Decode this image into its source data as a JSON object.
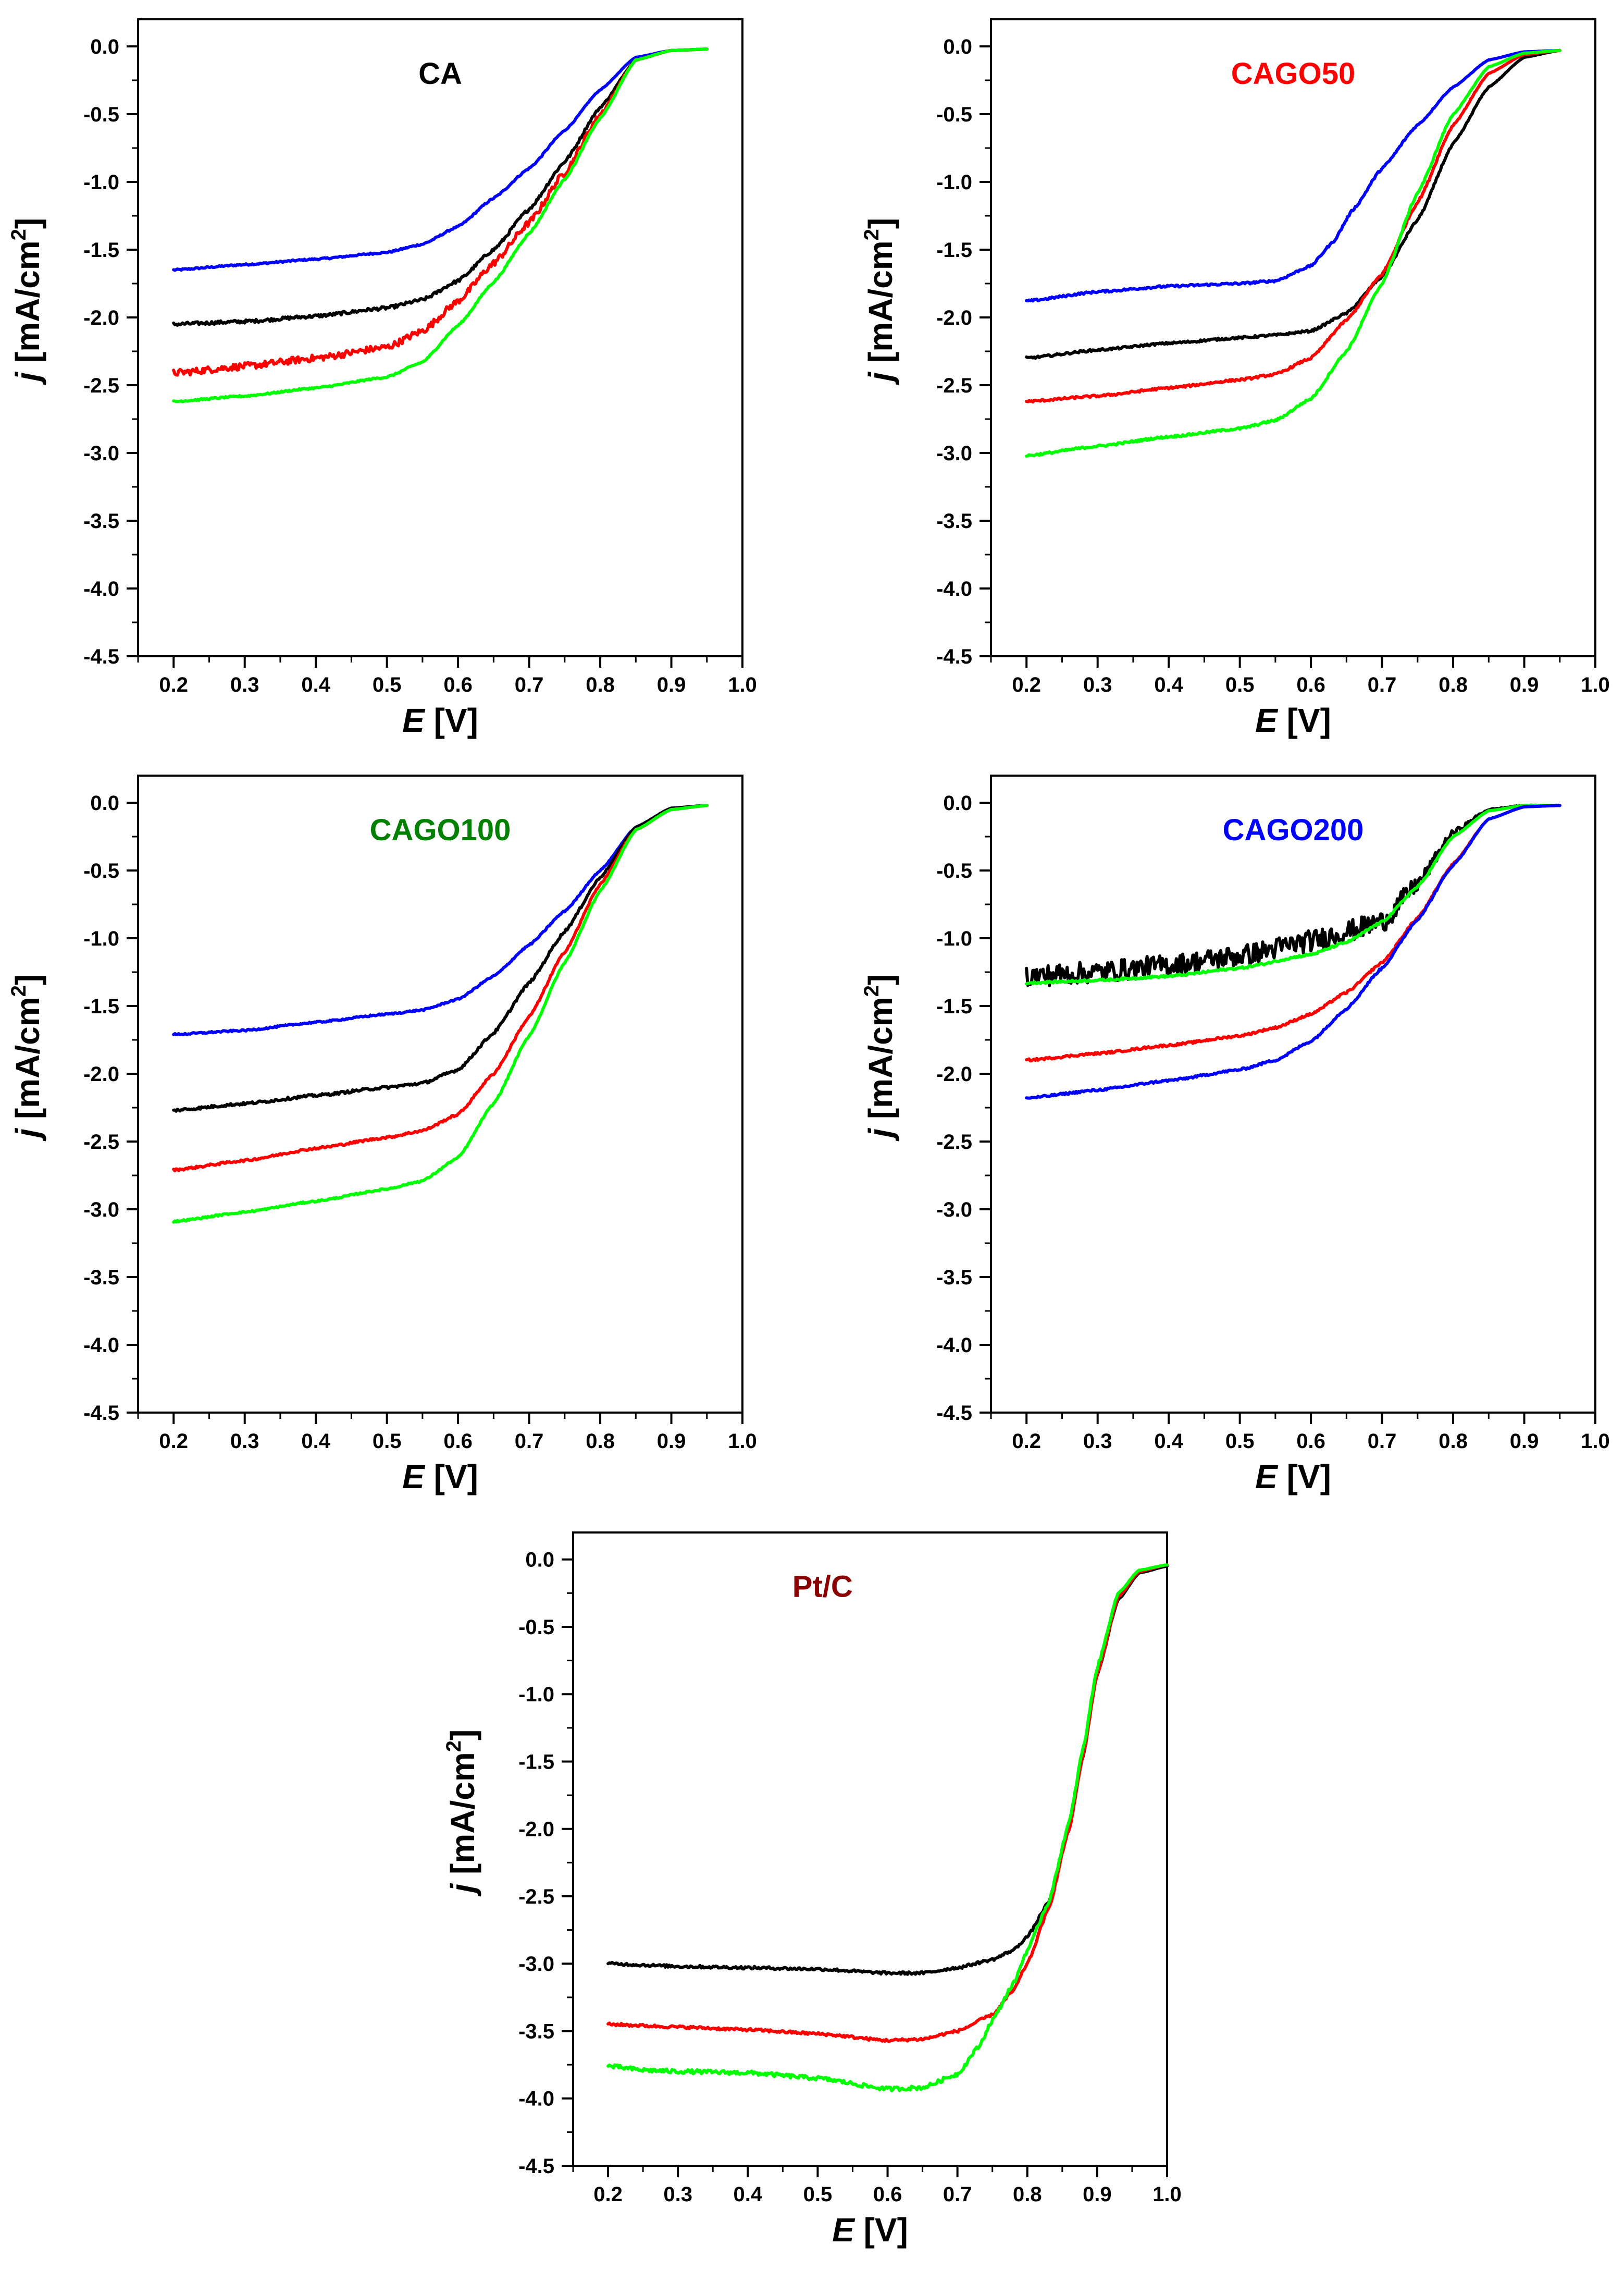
{
  "figure": {
    "series_colors": {
      "black": "#000000",
      "red": "#ff0000",
      "green": "#00ff00",
      "blue": "#0000ff"
    }
  },
  "chart_data": [
    {
      "type": "line",
      "title": "CA",
      "title_color": "#000000",
      "xlabel_var": "E",
      "xlabel_unit": " [V]",
      "ylabel_var": "j",
      "ylabel_unit": " [mA/cm",
      "ylabel_sup": "2",
      "ylabel_close": "]",
      "xlim": [
        0.15,
        1.0
      ],
      "ylim": [
        -4.5,
        0.2
      ],
      "xticks": [
        "0.2",
        "0.3",
        "0.4",
        "0.5",
        "0.6",
        "0.7",
        "0.8",
        "0.9",
        "1.0"
      ],
      "yticks": [
        "0.0",
        "-0.5",
        "-1.0",
        "-1.5",
        "-2.0",
        "-2.5",
        "-3.0",
        "-3.5",
        "-4.0",
        "-4.5"
      ],
      "series": [
        {
          "color": "blue",
          "x": [
            0.2,
            0.3,
            0.4,
            0.5,
            0.55,
            0.6,
            0.65,
            0.7,
            0.75,
            0.8,
            0.85,
            0.9,
            0.95
          ],
          "y": [
            -1.65,
            -1.61,
            -1.57,
            -1.52,
            -1.46,
            -1.33,
            -1.12,
            -0.9,
            -0.62,
            -0.32,
            -0.08,
            -0.03,
            -0.02
          ],
          "noise": 0.006
        },
        {
          "color": "black",
          "x": [
            0.2,
            0.3,
            0.4,
            0.5,
            0.55,
            0.6,
            0.65,
            0.7,
            0.75,
            0.8,
            0.85,
            0.9,
            0.95
          ],
          "y": [
            -2.05,
            -2.03,
            -1.99,
            -1.93,
            -1.87,
            -1.73,
            -1.5,
            -1.2,
            -0.85,
            -0.45,
            -0.1,
            -0.03,
            -0.02
          ],
          "noise": 0.012
        },
        {
          "color": "red",
          "x": [
            0.2,
            0.3,
            0.4,
            0.5,
            0.55,
            0.6,
            0.65,
            0.7,
            0.75,
            0.8,
            0.85,
            0.9,
            0.95
          ],
          "y": [
            -2.41,
            -2.36,
            -2.3,
            -2.22,
            -2.1,
            -1.88,
            -1.6,
            -1.3,
            -0.93,
            -0.5,
            -0.1,
            -0.03,
            -0.02
          ],
          "noise": 0.025
        },
        {
          "color": "green",
          "x": [
            0.2,
            0.3,
            0.4,
            0.5,
            0.55,
            0.6,
            0.65,
            0.7,
            0.75,
            0.8,
            0.85,
            0.9,
            0.95
          ],
          "y": [
            -2.62,
            -2.58,
            -2.52,
            -2.44,
            -2.33,
            -2.06,
            -1.74,
            -1.38,
            -0.98,
            -0.53,
            -0.1,
            -0.03,
            -0.02
          ],
          "noise": 0.006
        }
      ]
    },
    {
      "type": "line",
      "title": "CAGO50",
      "title_color": "#ff0000",
      "xlabel_var": "E",
      "xlabel_unit": " [V]",
      "ylabel_var": "j",
      "ylabel_unit": " [mA/cm",
      "ylabel_sup": "2",
      "ylabel_close": "]",
      "xlim": [
        0.15,
        1.0
      ],
      "ylim": [
        -4.5,
        0.2
      ],
      "xticks": [
        "0.2",
        "0.3",
        "0.4",
        "0.5",
        "0.6",
        "0.7",
        "0.8",
        "0.9",
        "1.0"
      ],
      "yticks": [
        "0.0",
        "-0.5",
        "-1.0",
        "-1.5",
        "-2.0",
        "-2.5",
        "-3.0",
        "-3.5",
        "-4.0",
        "-4.5"
      ],
      "series": [
        {
          "color": "blue",
          "x": [
            0.2,
            0.3,
            0.4,
            0.5,
            0.55,
            0.6,
            0.63,
            0.66,
            0.7,
            0.75,
            0.8,
            0.85,
            0.9,
            0.95
          ],
          "y": [
            -1.88,
            -1.81,
            -1.77,
            -1.75,
            -1.73,
            -1.62,
            -1.45,
            -1.2,
            -0.9,
            -0.58,
            -0.3,
            -0.1,
            -0.04,
            -0.03
          ],
          "noise": 0.008
        },
        {
          "color": "black",
          "x": [
            0.2,
            0.3,
            0.4,
            0.5,
            0.55,
            0.6,
            0.65,
            0.7,
            0.75,
            0.8,
            0.85,
            0.9,
            0.95
          ],
          "y": [
            -2.3,
            -2.24,
            -2.19,
            -2.15,
            -2.13,
            -2.1,
            -1.97,
            -1.7,
            -1.28,
            -0.72,
            -0.3,
            -0.08,
            -0.03
          ],
          "noise": 0.008
        },
        {
          "color": "red",
          "x": [
            0.2,
            0.3,
            0.4,
            0.5,
            0.55,
            0.6,
            0.65,
            0.7,
            0.75,
            0.8,
            0.85,
            0.9,
            0.95
          ],
          "y": [
            -2.62,
            -2.58,
            -2.52,
            -2.46,
            -2.42,
            -2.3,
            -2.02,
            -1.68,
            -1.15,
            -0.58,
            -0.2,
            -0.06,
            -0.03
          ],
          "noise": 0.008
        },
        {
          "color": "green",
          "x": [
            0.2,
            0.3,
            0.4,
            0.5,
            0.55,
            0.6,
            0.65,
            0.7,
            0.75,
            0.8,
            0.85,
            0.9,
            0.95
          ],
          "y": [
            -3.02,
            -2.95,
            -2.88,
            -2.82,
            -2.76,
            -2.6,
            -2.25,
            -1.75,
            -1.08,
            -0.5,
            -0.15,
            -0.05,
            -0.03
          ],
          "noise": 0.008
        }
      ]
    },
    {
      "type": "line",
      "title": "CAGO100",
      "title_color": "#008000",
      "xlabel_var": "E",
      "xlabel_unit": " [V]",
      "ylabel_var": "j",
      "ylabel_unit": " [mA/cm",
      "ylabel_sup": "2",
      "ylabel_close": "]",
      "xlim": [
        0.15,
        1.0
      ],
      "ylim": [
        -4.5,
        0.2
      ],
      "xticks": [
        "0.2",
        "0.3",
        "0.4",
        "0.5",
        "0.6",
        "0.7",
        "0.8",
        "0.9",
        "1.0"
      ],
      "yticks": [
        "0.0",
        "-0.5",
        "-1.0",
        "-1.5",
        "-2.0",
        "-2.5",
        "-3.0",
        "-3.5",
        "-4.0",
        "-4.5"
      ],
      "series": [
        {
          "color": "blue",
          "x": [
            0.2,
            0.3,
            0.4,
            0.5,
            0.55,
            0.6,
            0.65,
            0.7,
            0.75,
            0.8,
            0.85,
            0.9,
            0.95
          ],
          "y": [
            -1.71,
            -1.68,
            -1.62,
            -1.56,
            -1.53,
            -1.45,
            -1.28,
            -1.05,
            -0.8,
            -0.5,
            -0.18,
            -0.04,
            -0.02
          ],
          "noise": 0.006
        },
        {
          "color": "black",
          "x": [
            0.2,
            0.3,
            0.4,
            0.5,
            0.55,
            0.6,
            0.65,
            0.7,
            0.75,
            0.8,
            0.85,
            0.9,
            0.95
          ],
          "y": [
            -2.27,
            -2.22,
            -2.16,
            -2.1,
            -2.07,
            -1.97,
            -1.7,
            -1.33,
            -0.95,
            -0.55,
            -0.18,
            -0.04,
            -0.02
          ],
          "noise": 0.01
        },
        {
          "color": "red",
          "x": [
            0.2,
            0.3,
            0.4,
            0.5,
            0.55,
            0.6,
            0.65,
            0.7,
            0.75,
            0.8,
            0.85,
            0.9,
            0.95
          ],
          "y": [
            -2.71,
            -2.64,
            -2.55,
            -2.47,
            -2.42,
            -2.3,
            -2.0,
            -1.58,
            -1.1,
            -0.6,
            -0.2,
            -0.05,
            -0.02
          ],
          "noise": 0.008
        },
        {
          "color": "green",
          "x": [
            0.2,
            0.3,
            0.4,
            0.5,
            0.55,
            0.6,
            0.65,
            0.7,
            0.75,
            0.8,
            0.85,
            0.9,
            0.95
          ],
          "y": [
            -3.09,
            -3.02,
            -2.94,
            -2.85,
            -2.79,
            -2.62,
            -2.22,
            -1.72,
            -1.18,
            -0.65,
            -0.2,
            -0.05,
            -0.02
          ],
          "noise": 0.006
        }
      ]
    },
    {
      "type": "line",
      "title": "CAGO200",
      "title_color": "#0000ff",
      "xlabel_var": "E",
      "xlabel_unit": " [V]",
      "ylabel_var": "j",
      "ylabel_unit": " [mA/cm",
      "ylabel_sup": "2",
      "ylabel_close": "]",
      "xlim": [
        0.15,
        1.0
      ],
      "ylim": [
        -4.5,
        0.2
      ],
      "xticks": [
        "0.2",
        "0.3",
        "0.4",
        "0.5",
        "0.6",
        "0.7",
        "0.8",
        "0.9",
        "1.0"
      ],
      "yticks": [
        "0.0",
        "-0.5",
        "-1.0",
        "-1.5",
        "-2.0",
        "-2.5",
        "-3.0",
        "-3.5",
        "-4.0",
        "-4.5"
      ],
      "series": [
        {
          "color": "black",
          "x": [
            0.2,
            0.3,
            0.4,
            0.5,
            0.6,
            0.65,
            0.7,
            0.75,
            0.8,
            0.85,
            0.9,
            0.95
          ],
          "y": [
            -1.28,
            -1.25,
            -1.2,
            -1.13,
            -1.02,
            -0.95,
            -0.88,
            -0.6,
            -0.22,
            -0.05,
            -0.02,
            -0.02
          ],
          "noise": 0.08
        },
        {
          "color": "green",
          "x": [
            0.2,
            0.3,
            0.4,
            0.5,
            0.6,
            0.65,
            0.7,
            0.75,
            0.8,
            0.85,
            0.9,
            0.95
          ],
          "y": [
            -1.33,
            -1.31,
            -1.28,
            -1.22,
            -1.12,
            -1.03,
            -0.88,
            -0.62,
            -0.25,
            -0.06,
            -0.02,
            -0.02
          ],
          "noise": 0.008
        },
        {
          "color": "red",
          "x": [
            0.2,
            0.3,
            0.4,
            0.5,
            0.55,
            0.6,
            0.65,
            0.7,
            0.75,
            0.8,
            0.85,
            0.9,
            0.95
          ],
          "y": [
            -1.9,
            -1.85,
            -1.79,
            -1.72,
            -1.66,
            -1.56,
            -1.4,
            -1.18,
            -0.85,
            -0.45,
            -0.12,
            -0.03,
            -0.02
          ],
          "noise": 0.008
        },
        {
          "color": "blue",
          "x": [
            0.2,
            0.3,
            0.4,
            0.5,
            0.55,
            0.6,
            0.65,
            0.7,
            0.75,
            0.8,
            0.85,
            0.9,
            0.95
          ],
          "y": [
            -2.18,
            -2.12,
            -2.05,
            -1.97,
            -1.9,
            -1.76,
            -1.52,
            -1.22,
            -0.86,
            -0.46,
            -0.12,
            -0.03,
            -0.02
          ],
          "noise": 0.008
        }
      ]
    },
    {
      "type": "line",
      "title": "Pt/C",
      "title_color": "#8b0000",
      "xlabel_var": "E",
      "xlabel_unit": " [V]",
      "ylabel_var": "j",
      "ylabel_unit": " [mA/cm",
      "ylabel_sup": "2",
      "ylabel_close": "]",
      "xlim": [
        0.15,
        1.0
      ],
      "ylim": [
        -4.5,
        0.2
      ],
      "xticks": [
        "0.2",
        "0.3",
        "0.4",
        "0.5",
        "0.6",
        "0.7",
        "0.8",
        "0.9",
        "1.0"
      ],
      "yticks": [
        "0.0",
        "-0.5",
        "-1.0",
        "-1.5",
        "-2.0",
        "-2.5",
        "-3.0",
        "-3.5",
        "-4.0",
        "-4.5"
      ],
      "series": [
        {
          "color": "black",
          "x": [
            0.2,
            0.3,
            0.4,
            0.5,
            0.6,
            0.65,
            0.7,
            0.75,
            0.78,
            0.8,
            0.83,
            0.86,
            0.88,
            0.9,
            0.93,
            0.96,
            1.0
          ],
          "y": [
            -3.0,
            -3.02,
            -3.03,
            -3.04,
            -3.07,
            -3.07,
            -3.03,
            -2.97,
            -2.9,
            -2.8,
            -2.55,
            -2.0,
            -1.45,
            -0.85,
            -0.3,
            -0.1,
            -0.05
          ],
          "noise": 0.01
        },
        {
          "color": "red",
          "x": [
            0.2,
            0.3,
            0.4,
            0.5,
            0.6,
            0.65,
            0.7,
            0.75,
            0.78,
            0.8,
            0.83,
            0.86,
            0.88,
            0.9,
            0.93,
            0.96,
            1.0
          ],
          "y": [
            -3.45,
            -3.47,
            -3.49,
            -3.52,
            -3.57,
            -3.56,
            -3.5,
            -3.38,
            -3.2,
            -3.0,
            -2.6,
            -2.0,
            -1.45,
            -0.85,
            -0.28,
            -0.09,
            -0.04
          ],
          "noise": 0.01
        },
        {
          "color": "green",
          "x": [
            0.2,
            0.25,
            0.3,
            0.4,
            0.5,
            0.6,
            0.65,
            0.7,
            0.73,
            0.75,
            0.78,
            0.8,
            0.83,
            0.86,
            0.88,
            0.9,
            0.93,
            0.96,
            1.0
          ],
          "y": [
            -3.76,
            -3.79,
            -3.8,
            -3.81,
            -3.85,
            -3.93,
            -3.92,
            -3.82,
            -3.62,
            -3.42,
            -3.15,
            -2.9,
            -2.55,
            -1.95,
            -1.4,
            -0.8,
            -0.25,
            -0.08,
            -0.04
          ],
          "noise": 0.015
        }
      ]
    }
  ]
}
